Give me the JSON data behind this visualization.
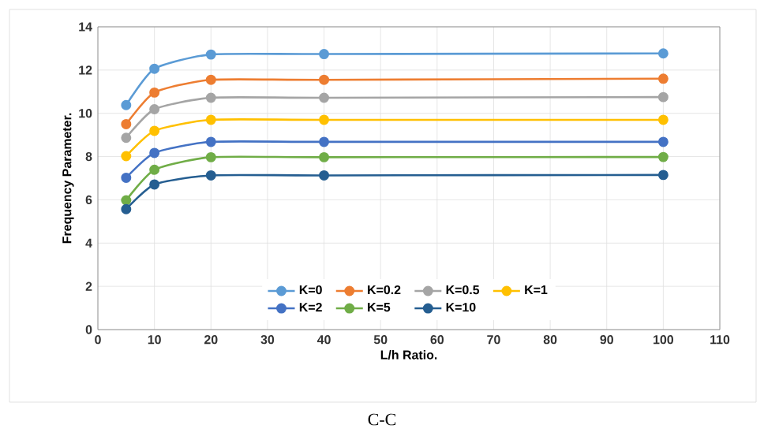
{
  "chart_data": {
    "type": "line",
    "xlabel": "L/h Ratio.",
    "ylabel": "Frequency Parameter.",
    "annotations": [
      "C-C"
    ],
    "xlim": [
      0,
      110
    ],
    "ylim": [
      0,
      14
    ],
    "xticks": [
      0,
      10,
      20,
      30,
      40,
      50,
      60,
      70,
      80,
      90,
      100,
      110
    ],
    "yticks": [
      0,
      2,
      4,
      6,
      8,
      10,
      12,
      14
    ],
    "grid": true,
    "legend": "bottom",
    "marker": "circle",
    "line_style": "solid",
    "x": [
      5,
      10,
      20,
      40,
      100
    ],
    "series": [
      {
        "name": "K=0",
        "color": "#5b9bd5",
        "values": [
          10.38,
          12.06,
          12.72,
          12.74,
          12.77
        ]
      },
      {
        "name": "K=0.2",
        "color": "#ed7d31",
        "values": [
          9.5,
          10.96,
          11.55,
          11.55,
          11.6
        ]
      },
      {
        "name": "K=0.5",
        "color": "#a5a5a5",
        "values": [
          8.87,
          10.19,
          10.72,
          10.72,
          10.75
        ]
      },
      {
        "name": "K=1",
        "color": "#ffc000",
        "values": [
          8.02,
          9.19,
          9.7,
          9.7,
          9.7
        ]
      },
      {
        "name": "K=2",
        "color": "#4472c4",
        "values": [
          7.02,
          8.17,
          8.68,
          8.68,
          8.68
        ]
      },
      {
        "name": "K=5",
        "color": "#70ad47",
        "values": [
          5.98,
          7.39,
          7.97,
          7.97,
          7.98
        ]
      },
      {
        "name": "K=10",
        "color": "#255e91",
        "values": [
          5.57,
          6.71,
          7.13,
          7.13,
          7.15
        ]
      }
    ]
  }
}
